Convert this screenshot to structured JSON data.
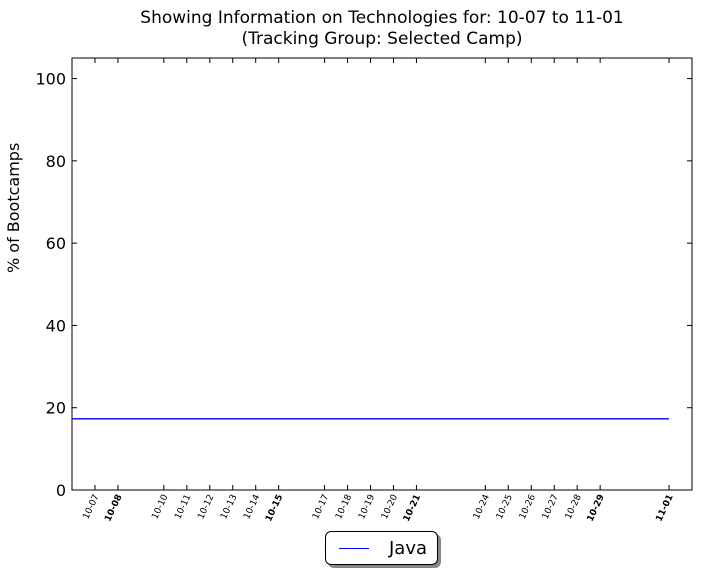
{
  "chart_data": {
    "type": "line",
    "title": "Showing Information on Technologies for: 10-07 to 11-01",
    "subtitle": "(Tracking Group: Selected Camp)",
    "xlabel": "",
    "ylabel": "% of Bootcamps",
    "ylim": [
      0,
      105
    ],
    "y_ticks": [
      0,
      20,
      40,
      60,
      80,
      100
    ],
    "x_range": [
      "2016-10-06",
      "2016-11-02"
    ],
    "x_tick_labels": [
      {
        "date": "2016-10-07",
        "label": "10-07",
        "bold": false
      },
      {
        "date": "2016-10-08",
        "label": "10-08",
        "bold": true
      },
      {
        "date": "2016-10-10",
        "label": "10-10",
        "bold": false
      },
      {
        "date": "2016-10-11",
        "label": "10-11",
        "bold": false
      },
      {
        "date": "2016-10-12",
        "label": "10-12",
        "bold": false
      },
      {
        "date": "2016-10-13",
        "label": "10-13",
        "bold": false
      },
      {
        "date": "2016-10-14",
        "label": "10-14",
        "bold": false
      },
      {
        "date": "2016-10-15",
        "label": "10-15",
        "bold": true
      },
      {
        "date": "2016-10-17",
        "label": "10-17",
        "bold": false
      },
      {
        "date": "2016-10-18",
        "label": "10-18",
        "bold": false
      },
      {
        "date": "2016-10-19",
        "label": "10-19",
        "bold": false
      },
      {
        "date": "2016-10-20",
        "label": "10-20",
        "bold": false
      },
      {
        "date": "2016-10-21",
        "label": "10-21",
        "bold": true
      },
      {
        "date": "2016-10-24",
        "label": "10-24",
        "bold": false
      },
      {
        "date": "2016-10-25",
        "label": "10-25",
        "bold": false
      },
      {
        "date": "2016-10-26",
        "label": "10-26",
        "bold": false
      },
      {
        "date": "2016-10-27",
        "label": "10-27",
        "bold": false
      },
      {
        "date": "2016-10-28",
        "label": "10-28",
        "bold": false
      },
      {
        "date": "2016-10-29",
        "label": "10-29",
        "bold": true
      },
      {
        "date": "2016-11-01",
        "label": "11-01",
        "bold": true
      }
    ],
    "series": [
      {
        "name": "Java",
        "color": "#0000ff",
        "x": [
          "2016-10-06",
          "2016-11-01"
        ],
        "y": [
          17.3,
          17.3
        ]
      }
    ],
    "grid": false,
    "legend": "bottom-center (below plot)"
  }
}
